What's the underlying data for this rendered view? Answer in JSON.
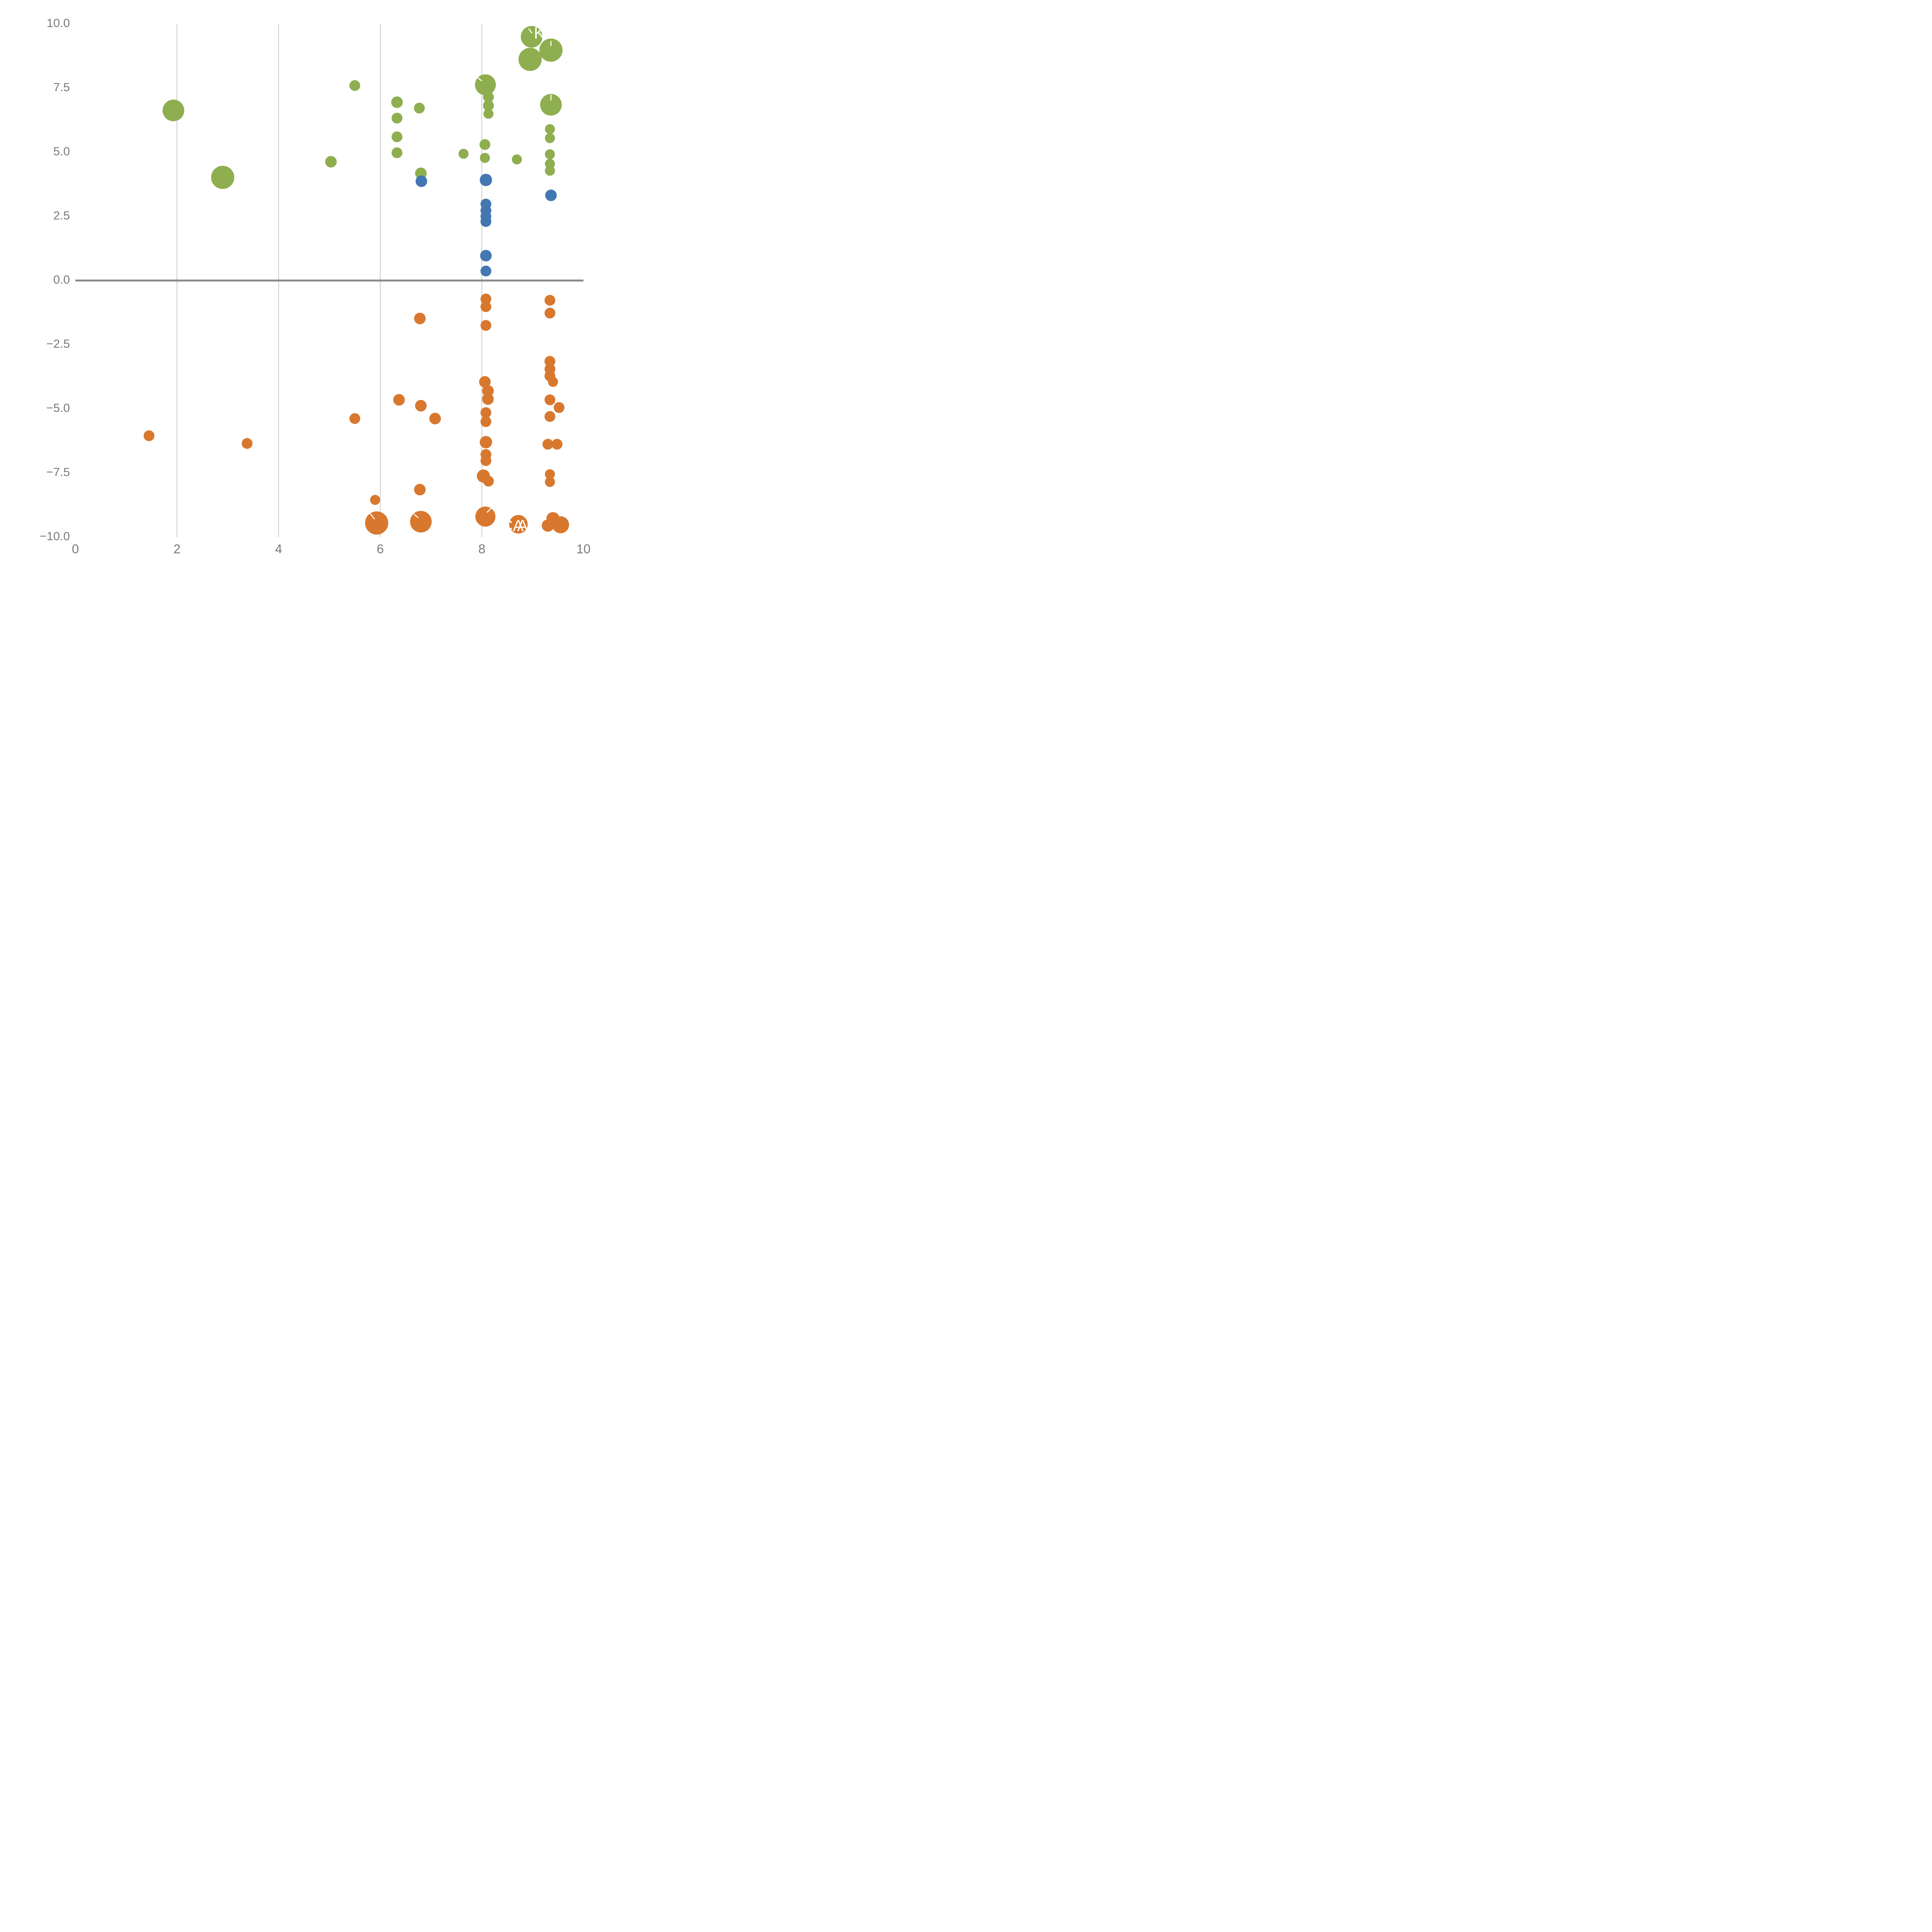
{
  "chart_data": {
    "type": "scatter",
    "title": "",
    "xlabel": "",
    "ylabel": "",
    "xlim": [
      0,
      10
    ],
    "ylim": [
      -10,
      10
    ],
    "grid": "vertical gridlines at x ticks; bold horizontal line at y=0",
    "legend": "none",
    "x_tick_values": [
      0,
      2,
      4,
      6,
      8,
      10
    ],
    "x_tick_labels": [
      "0",
      "2",
      "4",
      "6",
      "8",
      "10"
    ],
    "y_tick_values": [
      10.0,
      7.5,
      5.0,
      2.5,
      0.0,
      -2.5,
      -5.0,
      -7.5,
      -10.0
    ],
    "y_tick_labels": [
      "10.0",
      "7.5",
      "5.0",
      "2.5",
      "0.0",
      "−2.5",
      "−5.0",
      "−7.5",
      "−10.0"
    ],
    "colors": {
      "green": "#8eae4f",
      "blue": "#4377b2",
      "orange": "#d8782e",
      "gridline": "#cccccc",
      "zero_line": "#898989",
      "tick_text": "#7b7b7b",
      "annotation_text": "#ffffff"
    },
    "series": [
      {
        "name": "green",
        "color": "#8eae4f",
        "points": [
          {
            "x": 1.93,
            "y": 6.63,
            "r": 28
          },
          {
            "x": 2.9,
            "y": 4.02,
            "r": 30
          },
          {
            "x": 5.03,
            "y": 4.63,
            "r": 15
          },
          {
            "x": 5.5,
            "y": 7.6,
            "r": 14
          },
          {
            "x": 6.33,
            "y": 6.95,
            "r": 15
          },
          {
            "x": 6.33,
            "y": 6.33,
            "r": 14
          },
          {
            "x": 6.33,
            "y": 5.6,
            "r": 14
          },
          {
            "x": 6.33,
            "y": 4.98,
            "r": 14
          },
          {
            "x": 6.77,
            "y": 6.72,
            "r": 14
          },
          {
            "x": 6.8,
            "y": 4.18,
            "r": 15
          },
          {
            "x": 7.64,
            "y": 4.94,
            "r": 13
          },
          {
            "x": 8.07,
            "y": 7.63,
            "r": 27
          },
          {
            "x": 8.13,
            "y": 7.15,
            "r": 14
          },
          {
            "x": 8.13,
            "y": 6.82,
            "r": 14
          },
          {
            "x": 8.13,
            "y": 6.5,
            "r": 13
          },
          {
            "x": 8.06,
            "y": 5.3,
            "r": 14
          },
          {
            "x": 8.06,
            "y": 4.78,
            "r": 13
          },
          {
            "x": 8.69,
            "y": 4.72,
            "r": 13
          },
          {
            "x": 8.98,
            "y": 9.5,
            "r": 28
          },
          {
            "x": 8.95,
            "y": 8.62,
            "r": 30
          },
          {
            "x": 9.36,
            "y": 8.98,
            "r": 30
          },
          {
            "x": 9.36,
            "y": 6.85,
            "r": 28
          },
          {
            "x": 9.34,
            "y": 5.9,
            "r": 13
          },
          {
            "x": 9.34,
            "y": 5.55,
            "r": 13
          },
          {
            "x": 9.34,
            "y": 4.92,
            "r": 13
          },
          {
            "x": 9.34,
            "y": 4.55,
            "r": 13
          },
          {
            "x": 9.34,
            "y": 4.28,
            "r": 13
          }
        ]
      },
      {
        "name": "blue",
        "color": "#4377b2",
        "points": [
          {
            "x": 6.81,
            "y": 3.87,
            "r": 15
          },
          {
            "x": 8.08,
            "y": 3.92,
            "r": 16
          },
          {
            "x": 8.08,
            "y": 2.98,
            "r": 14
          },
          {
            "x": 8.08,
            "y": 2.73,
            "r": 14
          },
          {
            "x": 8.08,
            "y": 2.5,
            "r": 14
          },
          {
            "x": 8.08,
            "y": 2.3,
            "r": 14
          },
          {
            "x": 8.08,
            "y": 0.97,
            "r": 15
          },
          {
            "x": 8.08,
            "y": 0.37,
            "r": 14
          },
          {
            "x": 9.36,
            "y": 3.32,
            "r": 15
          }
        ]
      },
      {
        "name": "orange",
        "color": "#d8782e",
        "points": [
          {
            "x": 8.08,
            "y": -0.72,
            "r": 14
          },
          {
            "x": 8.08,
            "y": -1.02,
            "r": 14
          },
          {
            "x": 6.78,
            "y": -1.48,
            "r": 15
          },
          {
            "x": 8.08,
            "y": -1.75,
            "r": 14
          },
          {
            "x": 9.34,
            "y": -0.77,
            "r": 14
          },
          {
            "x": 9.34,
            "y": -1.27,
            "r": 14
          },
          {
            "x": 9.34,
            "y": -3.15,
            "r": 14
          },
          {
            "x": 9.34,
            "y": -3.45,
            "r": 14
          },
          {
            "x": 9.34,
            "y": -3.72,
            "r": 14
          },
          {
            "x": 9.4,
            "y": -3.95,
            "r": 13
          },
          {
            "x": 8.06,
            "y": -3.95,
            "r": 15
          },
          {
            "x": 8.12,
            "y": -4.3,
            "r": 15
          },
          {
            "x": 8.12,
            "y": -4.62,
            "r": 15
          },
          {
            "x": 6.37,
            "y": -4.65,
            "r": 15
          },
          {
            "x": 6.8,
            "y": -4.88,
            "r": 15
          },
          {
            "x": 9.34,
            "y": -4.65,
            "r": 14
          },
          {
            "x": 9.52,
            "y": -4.95,
            "r": 14
          },
          {
            "x": 9.34,
            "y": -5.3,
            "r": 14
          },
          {
            "x": 8.08,
            "y": -5.15,
            "r": 14
          },
          {
            "x": 8.08,
            "y": -5.5,
            "r": 14
          },
          {
            "x": 7.08,
            "y": -5.38,
            "r": 15
          },
          {
            "x": 5.5,
            "y": -5.38,
            "r": 14
          },
          {
            "x": 1.45,
            "y": -6.05,
            "r": 14
          },
          {
            "x": 3.38,
            "y": -6.35,
            "r": 14
          },
          {
            "x": 8.08,
            "y": -6.3,
            "r": 16
          },
          {
            "x": 9.3,
            "y": -6.38,
            "r": 14
          },
          {
            "x": 9.48,
            "y": -6.38,
            "r": 14
          },
          {
            "x": 8.08,
            "y": -6.78,
            "r": 14
          },
          {
            "x": 8.08,
            "y": -7.02,
            "r": 14
          },
          {
            "x": 8.03,
            "y": -7.62,
            "r": 17
          },
          {
            "x": 8.13,
            "y": -7.82,
            "r": 14
          },
          {
            "x": 9.34,
            "y": -7.55,
            "r": 13
          },
          {
            "x": 9.34,
            "y": -7.85,
            "r": 13
          },
          {
            "x": 6.78,
            "y": -8.15,
            "r": 15
          },
          {
            "x": 5.9,
            "y": -8.55,
            "r": 13
          },
          {
            "x": 5.93,
            "y": -9.45,
            "r": 30
          },
          {
            "x": 6.8,
            "y": -9.4,
            "r": 28
          },
          {
            "x": 8.07,
            "y": -9.2,
            "r": 26
          },
          {
            "x": 8.72,
            "y": -9.5,
            "r": 24
          },
          {
            "x": 9.4,
            "y": -9.28,
            "r": 17
          },
          {
            "x": 9.3,
            "y": -9.55,
            "r": 16
          },
          {
            "x": 9.55,
            "y": -9.52,
            "r": 22
          }
        ]
      }
    ],
    "annotations": [
      {
        "text": "K",
        "x": 9.13,
        "y": 9.6
      },
      {
        "text": "CA",
        "x": 8.6,
        "y": -9.6
      },
      {
        "text": "A",
        "x": 8.8,
        "y": -9.6
      },
      {
        "text": "3",
        "x": 8.97,
        "y": -9.6
      }
    ],
    "leader_lines": [
      {
        "x1": 8.0,
        "y1": 7.78,
        "x2": 7.87,
        "y2": 7.98
      },
      {
        "x1": 9.36,
        "y1": 7.02,
        "x2": 9.36,
        "y2": 7.24
      },
      {
        "x1": 8.99,
        "y1": 9.64,
        "x2": 8.92,
        "y2": 9.82
      },
      {
        "x1": 9.36,
        "y1": 9.14,
        "x2": 9.36,
        "y2": 9.34
      },
      {
        "x1": 5.89,
        "y1": -9.3,
        "x2": 5.79,
        "y2": -9.06
      },
      {
        "x1": 8.1,
        "y1": -9.04,
        "x2": 8.2,
        "y2": -8.84
      },
      {
        "x1": 6.75,
        "y1": -9.25,
        "x2": 6.66,
        "y2": -9.1
      }
    ]
  }
}
